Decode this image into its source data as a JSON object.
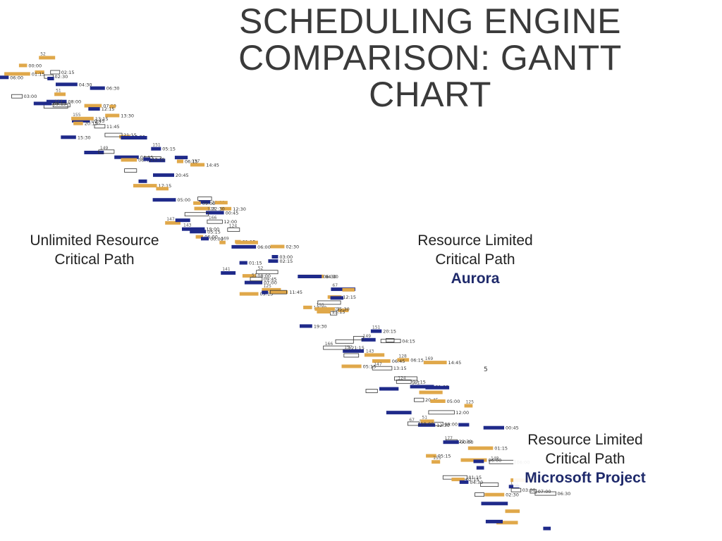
{
  "slide": {
    "title_lines": [
      "SCHEDULING ENGINE",
      "COMPARISON: GANTT",
      "CHART"
    ]
  },
  "labels": {
    "unlimited": {
      "line1": "Unlimited Resource",
      "line2": "Critical Path"
    },
    "aurora": {
      "line1": "Resource Limited",
      "line2": "Critical Path",
      "tool": "Aurora"
    },
    "msproject": {
      "line1": "Resource Limited",
      "line2": "Critical Path",
      "tool": "Microsoft Project"
    }
  },
  "colors": {
    "orange_task": "#e0a84a",
    "blue_task": "#1f2a8a",
    "outline_task": "#333333",
    "label_tool": "#1f2a6b"
  },
  "gantt": {
    "task_timestamps": [
      "00:00",
      "06:00",
      "01:15",
      "02:15",
      "02:30",
      "03:00",
      "04:30",
      "06:30",
      "07:00",
      "08:00",
      "09:15",
      "09:45",
      "11:45",
      "12:15",
      "13:15",
      "13:30",
      "15:30",
      "19:30",
      "20:15",
      "21:15",
      "04:15",
      "05:15",
      "06:15",
      "06:45",
      "13:15",
      "14:45",
      "17:15",
      "20:45",
      "21:00",
      "05:00",
      "09:00",
      "12:00",
      "12:30",
      "19:00",
      "22:30",
      "00:45",
      "01:15",
      "05:15",
      "06:00"
    ],
    "task_ids": [
      "52",
      "51",
      "67",
      "177",
      "155",
      "149",
      "151",
      "157",
      "166",
      "143",
      "128",
      "147",
      "169",
      "124",
      "141",
      "125"
    ],
    "stray_mark": "5"
  }
}
